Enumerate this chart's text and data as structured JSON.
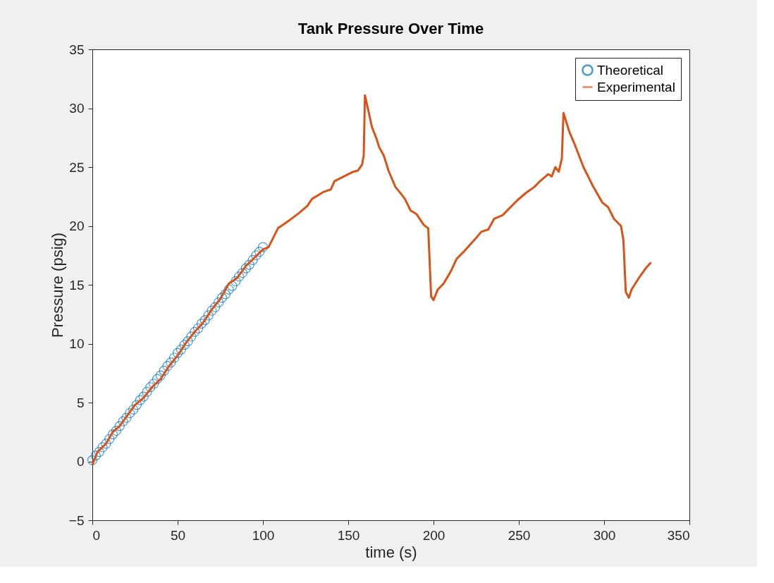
{
  "chart_data": {
    "type": "line",
    "title": "Tank Pressure Over Time",
    "xlabel": "time (s)",
    "ylabel": "Pressure (psig)",
    "xlim": [
      0,
      350
    ],
    "xticks": [
      0,
      50,
      100,
      150,
      200,
      250,
      300,
      350
    ],
    "ylim": [
      -5,
      35
    ],
    "yticks": [
      -5,
      0,
      5,
      10,
      15,
      20,
      25,
      30,
      35
    ],
    "grid": false,
    "legend": "top right",
    "series": [
      {
        "name": "Theoretical",
        "type": "scatter",
        "marker": "circle",
        "color": "#0072bd",
        "x": [
          0,
          2,
          4,
          6,
          8,
          10,
          12,
          14,
          16,
          18,
          20,
          22,
          24,
          26,
          28,
          30,
          32,
          34,
          36,
          38,
          40,
          42,
          44,
          46,
          48,
          50,
          52,
          54,
          56,
          58,
          60,
          62,
          64,
          66,
          68,
          70,
          72,
          74,
          76,
          78,
          80,
          82,
          84,
          86,
          88,
          90,
          92,
          94,
          96,
          98,
          100
        ],
        "values": [
          0.1,
          0.5,
          0.8,
          1.2,
          1.5,
          1.9,
          2.3,
          2.6,
          3.0,
          3.4,
          3.7,
          4.1,
          4.4,
          4.8,
          5.2,
          5.5,
          5.9,
          6.3,
          6.6,
          7.0,
          7.3,
          7.7,
          8.1,
          8.4,
          8.8,
          9.2,
          9.5,
          9.9,
          10.2,
          10.6,
          11.0,
          11.3,
          11.7,
          12.0,
          12.4,
          12.8,
          13.1,
          13.5,
          13.9,
          14.2,
          14.6,
          14.9,
          15.3,
          15.7,
          16.0,
          16.4,
          16.7,
          17.1,
          17.5,
          17.8,
          18.2
        ]
      },
      {
        "name": "Experimental",
        "type": "line",
        "marker": "none",
        "line_style": "solid",
        "color": "#d95319",
        "x": [
          0,
          3,
          8,
          12,
          16,
          20,
          25,
          30,
          35,
          40,
          45,
          50,
          55,
          60,
          65,
          70,
          75,
          80,
          85,
          90,
          95,
          100,
          103.3,
          108.8,
          115.7,
          121.2,
          126,
          128.8,
          135.7,
          139.8,
          141.9,
          148.8,
          152.9,
          155.6,
          158.1,
          159.1,
          159.8,
          161.2,
          163.9,
          166.6,
          168.1,
          170.8,
          173.6,
          177.7,
          181.1,
          183.2,
          186.6,
          190.1,
          194.2,
          196.9,
          198.6,
          200,
          202.5,
          205.9,
          210,
          213.5,
          218.3,
          224.5,
          228,
          232.1,
          235.5,
          240.4,
          243.8,
          249.3,
          254.1,
          259,
          262.4,
          267.2,
          269.3,
          271.4,
          273.4,
          275.2,
          276.2,
          279.6,
          283.1,
          287.9,
          293.4,
          298.9,
          302.3,
          305.8,
          309.9,
          311.3,
          312.7,
          314.5,
          316.1,
          320.9,
          324.4,
          327.5
        ],
        "values": [
          -0.3,
          0.8,
          1.5,
          2.5,
          3.0,
          3.8,
          4.8,
          5.4,
          6.3,
          7.0,
          8.1,
          9.0,
          10.1,
          11.0,
          11.8,
          12.9,
          13.8,
          15.1,
          15.6,
          16.6,
          17.3,
          18.0,
          18.2,
          19.8,
          20.5,
          21.1,
          21.7,
          22.3,
          22.9,
          23.1,
          23.8,
          24.3,
          24.6,
          24.7,
          25.2,
          26.0,
          31.1,
          30.2,
          28.4,
          27.4,
          26.7,
          26.0,
          24.7,
          23.3,
          22.7,
          22.3,
          21.3,
          21.0,
          20.1,
          19.8,
          14.0,
          13.7,
          14.6,
          15.1,
          16.1,
          17.2,
          17.9,
          18.9,
          19.5,
          19.7,
          20.6,
          20.9,
          21.4,
          22.2,
          22.8,
          23.3,
          23.8,
          24.4,
          24.2,
          25.0,
          24.6,
          25.7,
          29.6,
          28.0,
          26.8,
          25.0,
          23.4,
          22.0,
          21.6,
          20.6,
          20.0,
          18.8,
          14.4,
          13.9,
          14.6,
          15.7,
          16.4,
          16.9
        ]
      }
    ]
  }
}
